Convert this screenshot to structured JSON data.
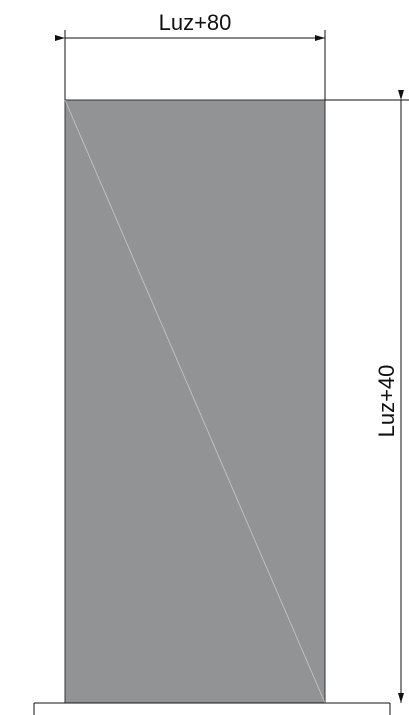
{
  "dimensions": {
    "width_label": "Luz+80",
    "height_label": "Luz+40"
  }
}
